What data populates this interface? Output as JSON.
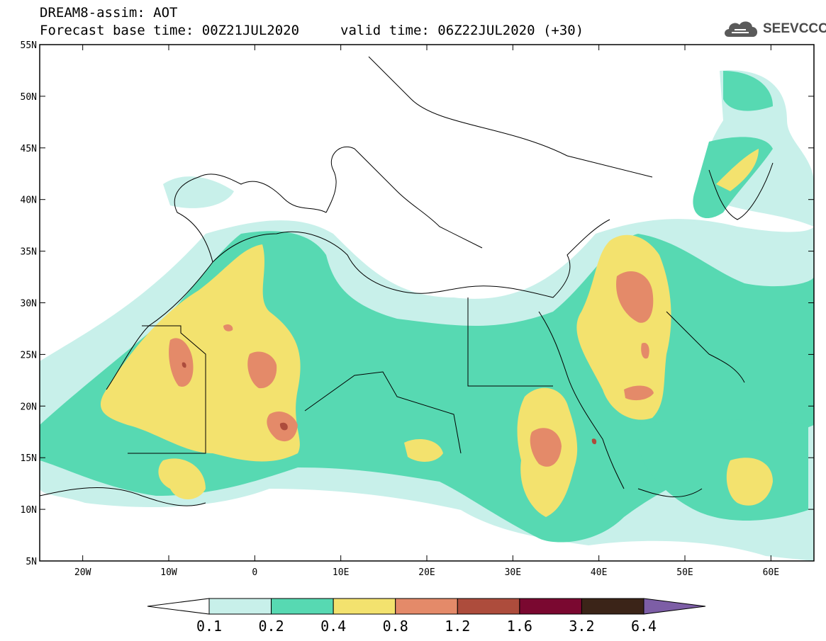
{
  "title": {
    "line1": "DREAM8-assim: AOT",
    "line2": "Forecast base time: 00Z21JUL2020",
    "valid": "valid time: 06Z22JUL2020 (+30)"
  },
  "logo": {
    "text": "SEEVCCC",
    "icon": "cloud-icon"
  },
  "map": {
    "lon_range": [
      -25,
      65
    ],
    "lat_range": [
      5,
      55
    ],
    "lat_ticks": [
      "55N",
      "50N",
      "45N",
      "40N",
      "35N",
      "30N",
      "25N",
      "20N",
      "15N",
      "10N",
      "5N"
    ],
    "lon_ticks": [
      "20W",
      "10W",
      "0",
      "10E",
      "20E",
      "30E",
      "40E",
      "50E",
      "60E"
    ]
  },
  "colorbar": {
    "labels": [
      "0.1",
      "0.2",
      "0.4",
      "0.8",
      "1.2",
      "1.6",
      "3.2",
      "6.4"
    ],
    "colors": [
      "#ffffff",
      "#c8f0ea",
      "#57d9b2",
      "#f3e26e",
      "#e48a69",
      "#ad4c3c",
      "#7a0830",
      "#3b2418",
      "#7d5ea6"
    ]
  }
}
